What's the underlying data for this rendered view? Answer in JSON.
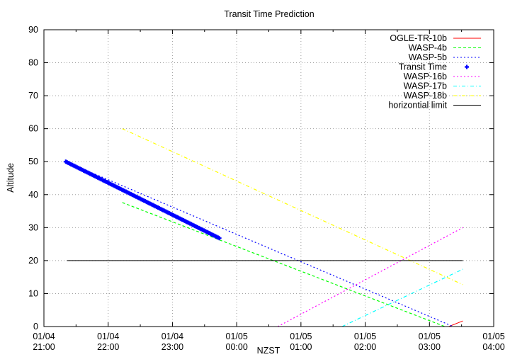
{
  "chart_data": {
    "type": "line",
    "title": "Transit Time Prediction",
    "xlabel": "NZST",
    "ylabel": "Altitude",
    "ylim": [
      0,
      90
    ],
    "xlim_hours_after_start": [
      0,
      7
    ],
    "grid": true,
    "legend_position": "top-right, inside",
    "y_ticks": [
      "0",
      "10",
      "20",
      "30",
      "40",
      "50",
      "60",
      "70",
      "80",
      "90"
    ],
    "x_ticks": [
      {
        "date": "01/04",
        "time": "21:00"
      },
      {
        "date": "01/04",
        "time": "22:00"
      },
      {
        "date": "01/04",
        "time": "23:00"
      },
      {
        "date": "01/05",
        "time": "00:00"
      },
      {
        "date": "01/05",
        "time": "01:00"
      },
      {
        "date": "01/05",
        "time": "02:00"
      },
      {
        "date": "01/05",
        "time": "03:00"
      },
      {
        "date": "01/05",
        "time": "04:00"
      }
    ],
    "series": [
      {
        "name": "OGLE-TR-10b",
        "color": "#ff0000",
        "style": "solid",
        "x_hours": [
          6.3,
          6.52
        ],
        "values": [
          0,
          1.7
        ]
      },
      {
        "name": "WASP-4b",
        "color": "#00ff00",
        "style": "dashed",
        "x_hours": [
          1.22,
          6.24
        ],
        "values": [
          37.6,
          0
        ]
      },
      {
        "name": "WASP-5b",
        "color": "#0000ff",
        "style": "dotted",
        "x_hours": [
          0.34,
          6.37
        ],
        "values": [
          50,
          0
        ]
      },
      {
        "name": "Transit Time",
        "color": "#0000ff",
        "style": "points",
        "x_hours": [
          0.34,
          2.73
        ],
        "values": [
          50,
          26.8
        ]
      },
      {
        "name": "WASP-16b",
        "color": "#ff00ff",
        "style": "dotted",
        "x_hours": [
          3.64,
          6.52
        ],
        "values": [
          0,
          30
        ]
      },
      {
        "name": "WASP-17b",
        "color": "#00ffff",
        "style": "dash-dot",
        "x_hours": [
          4.64,
          6.52
        ],
        "values": [
          0,
          17.4
        ]
      },
      {
        "name": "WASP-18b",
        "color": "#ffff00",
        "style": "dash-dot",
        "x_hours": [
          1.22,
          6.52
        ],
        "values": [
          60,
          12.7
        ]
      },
      {
        "name": "horizontial limit",
        "color": "#000000",
        "style": "solid",
        "x_hours": [
          0.36,
          6.52
        ],
        "values": [
          20,
          20
        ]
      }
    ]
  }
}
